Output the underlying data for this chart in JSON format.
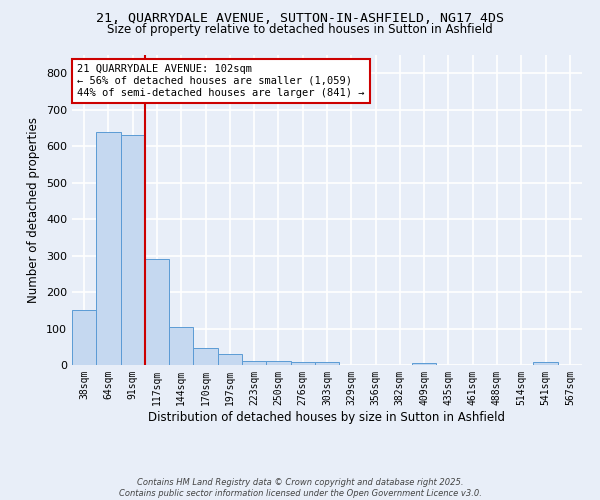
{
  "title1": "21, QUARRYDALE AVENUE, SUTTON-IN-ASHFIELD, NG17 4DS",
  "title2": "Size of property relative to detached houses in Sutton in Ashfield",
  "xlabel": "Distribution of detached houses by size in Sutton in Ashfield",
  "ylabel": "Number of detached properties",
  "bin_labels": [
    "38sqm",
    "64sqm",
    "91sqm",
    "117sqm",
    "144sqm",
    "170sqm",
    "197sqm",
    "223sqm",
    "250sqm",
    "276sqm",
    "303sqm",
    "329sqm",
    "356sqm",
    "382sqm",
    "409sqm",
    "435sqm",
    "461sqm",
    "488sqm",
    "514sqm",
    "541sqm",
    "567sqm"
  ],
  "bar_values": [
    150,
    638,
    630,
    290,
    104,
    46,
    30,
    10,
    10,
    7,
    8,
    0,
    0,
    0,
    5,
    0,
    0,
    0,
    0,
    8,
    0
  ],
  "bar_color": "#c5d8f0",
  "bar_edge_color": "#5b9bd5",
  "ylim": [
    0,
    850
  ],
  "yticks": [
    0,
    100,
    200,
    300,
    400,
    500,
    600,
    700,
    800
  ],
  "red_line_x": 2.5,
  "annotation_text": "21 QUARRYDALE AVENUE: 102sqm\n← 56% of detached houses are smaller (1,059)\n44% of semi-detached houses are larger (841) →",
  "annotation_box_color": "#ffffff",
  "annotation_box_edge": "#cc0000",
  "footer": "Contains HM Land Registry data © Crown copyright and database right 2025.\nContains public sector information licensed under the Open Government Licence v3.0.",
  "background_color": "#e8eef8",
  "grid_color": "#ffffff",
  "title1_fontsize": 9.5,
  "title2_fontsize": 8.5
}
